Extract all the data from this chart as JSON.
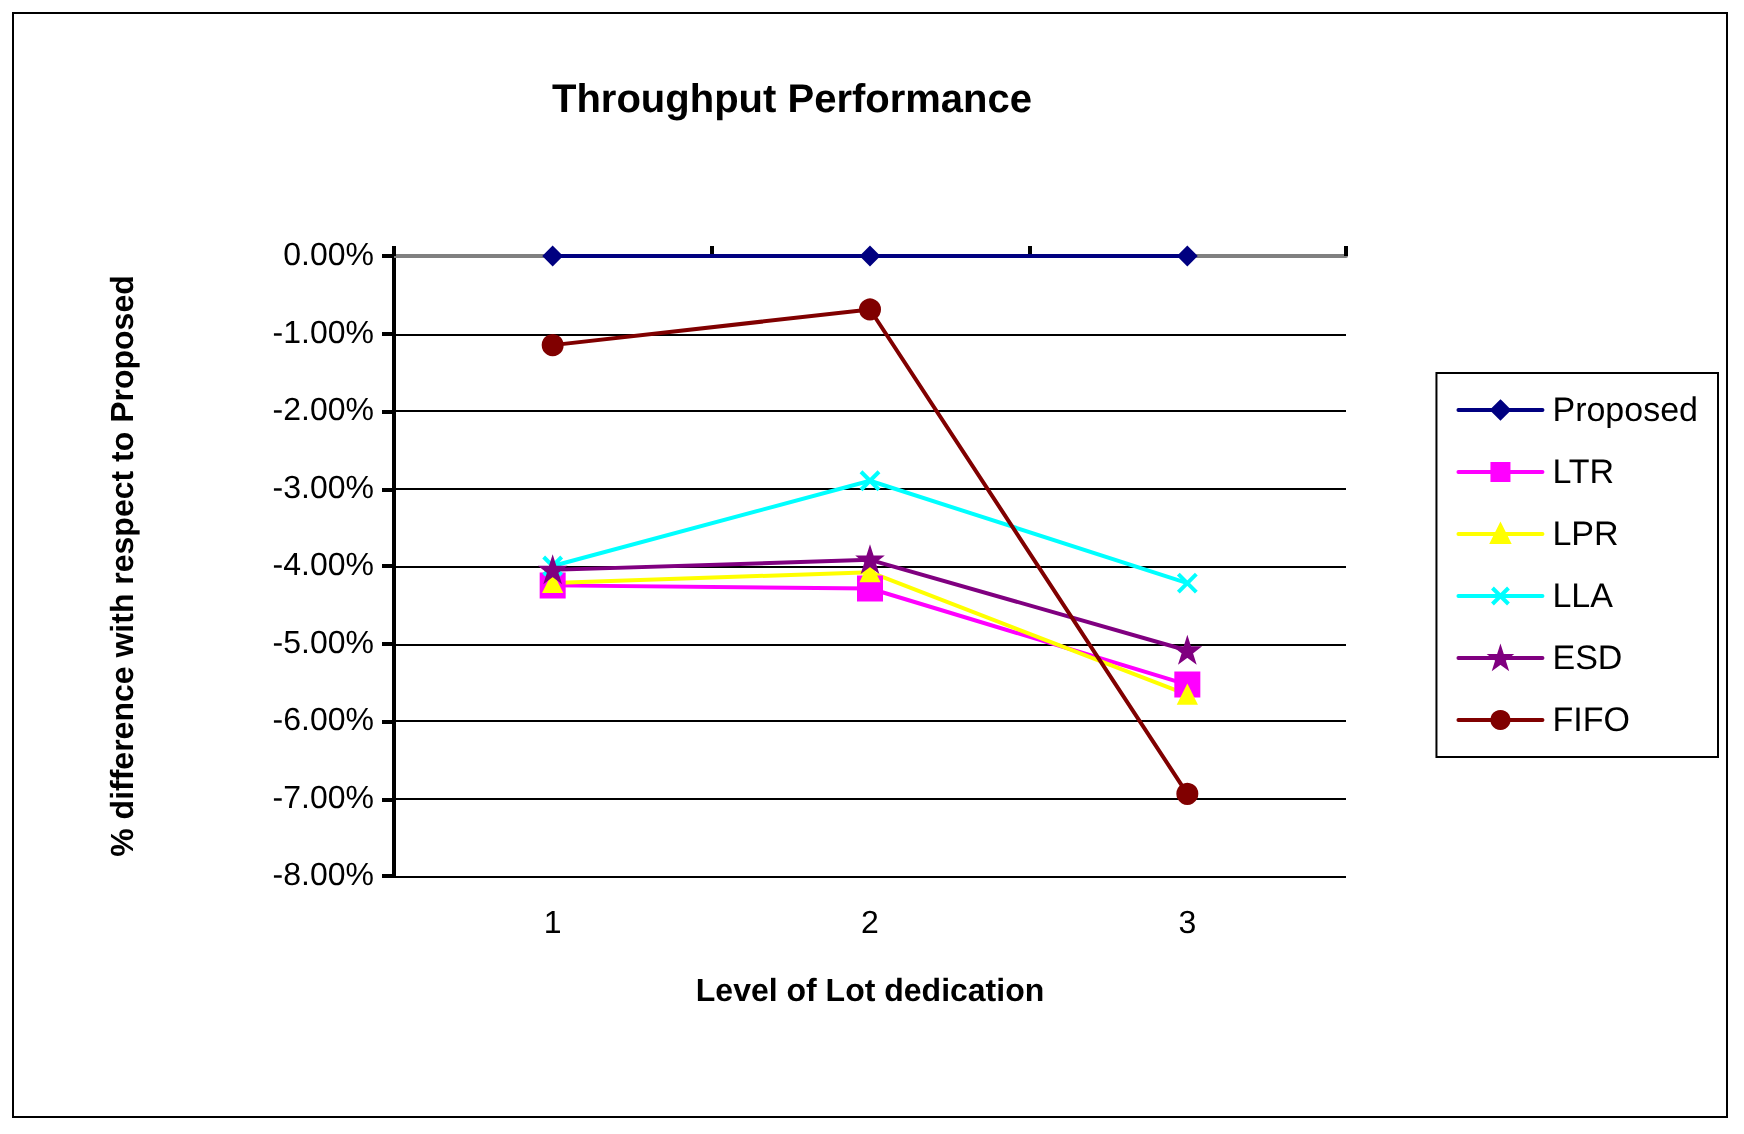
{
  "chart_data": {
    "type": "line",
    "title": "Throughput Performance",
    "xlabel": "Level of Lot dedication",
    "ylabel": "% difference with respect to Proposed",
    "categories": [
      "1",
      "2",
      "3"
    ],
    "series": [
      {
        "name": "Proposed",
        "color": "#000080",
        "marker": "diamond",
        "values": [
          0,
          0,
          0
        ]
      },
      {
        "name": "LTR",
        "color": "#ff00ff",
        "marker": "square",
        "values": [
          -4.25,
          -4.29,
          -5.53
        ]
      },
      {
        "name": "LPR",
        "color": "#ffff00",
        "marker": "triangle",
        "values": [
          -4.22,
          -4.08,
          -5.66
        ]
      },
      {
        "name": "LLA",
        "color": "#00ffff",
        "marker": "cross",
        "values": [
          -4.0,
          -2.9,
          -4.22
        ]
      },
      {
        "name": "ESD",
        "color": "#800080",
        "marker": "star",
        "values": [
          -4.05,
          -3.92,
          -5.09
        ]
      },
      {
        "name": "FIFO",
        "color": "#800000",
        "marker": "circle",
        "values": [
          -1.15,
          -0.69,
          -6.94
        ]
      }
    ],
    "ylim": [
      -8,
      0
    ],
    "yticks": [
      {
        "value": -8,
        "label": "-8.00%"
      },
      {
        "value": -7,
        "label": "-7.00%"
      },
      {
        "value": -6,
        "label": "-6.00%"
      },
      {
        "value": -5,
        "label": "-5.00%"
      },
      {
        "value": -4,
        "label": "-4.00%"
      },
      {
        "value": -3,
        "label": "-3.00%"
      },
      {
        "value": -2,
        "label": "-2.00%"
      },
      {
        "value": -1,
        "label": "-1.00%"
      },
      {
        "value": 0,
        "label": "0.00%"
      }
    ],
    "grid": "y",
    "legend": "right",
    "line_style": "solid"
  }
}
